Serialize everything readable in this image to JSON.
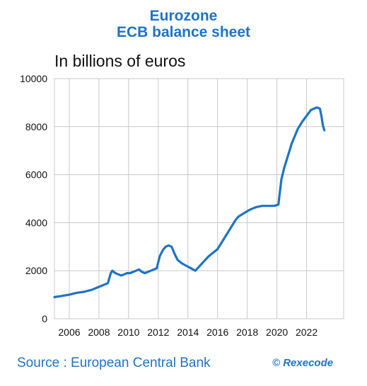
{
  "title_line1": "Eurozone",
  "title_line2": "ECB balance sheet",
  "subtitle": "In billions of euros",
  "source": "Source : European Central Bank",
  "credit": "© Rexecode",
  "colors": {
    "title": "#1f73c4",
    "line": "#1f73c4",
    "grid": "#c8c8c8"
  },
  "chart_data": {
    "type": "line",
    "title": "",
    "xlabel": "",
    "ylabel": "",
    "xlim": [
      2005.0,
      2024.5
    ],
    "ylim": [
      0,
      10000
    ],
    "grid": true,
    "legend": "none",
    "x_ticks": [
      "2006",
      "2008",
      "2010",
      "2012",
      "2014",
      "2016",
      "2018",
      "2020",
      "2022"
    ],
    "y_ticks": [
      "0",
      "2000",
      "4000",
      "6000",
      "8000",
      "10000"
    ],
    "series": [
      {
        "name": "",
        "x": [
          2005.0,
          2005.5,
          2006.0,
          2006.5,
          2007.0,
          2007.5,
          2007.9,
          2008.3,
          2008.6,
          2008.8,
          2008.9,
          2009.1,
          2009.3,
          2009.5,
          2009.7,
          2009.9,
          2010.1,
          2010.3,
          2010.5,
          2010.7,
          2010.9,
          2011.1,
          2011.3,
          2011.5,
          2011.7,
          2011.9,
          2012.1,
          2012.3,
          2012.5,
          2012.7,
          2012.9,
          2013.1,
          2013.3,
          2013.6,
          2013.9,
          2014.2,
          2014.5,
          2014.8,
          2015.1,
          2015.4,
          2015.7,
          2016.0,
          2016.4,
          2016.8,
          2017.2,
          2017.4,
          2017.8,
          2018.2,
          2018.6,
          2019.0,
          2019.4,
          2019.8,
          2020.1,
          2020.3,
          2020.5,
          2020.7,
          2021.0,
          2021.2,
          2021.4,
          2021.7,
          2022.0,
          2022.3,
          2022.5,
          2022.7,
          2022.9,
          2023.0,
          2023.1,
          2023.2
        ],
        "values": [
          900,
          950,
          1000,
          1080,
          1120,
          1200,
          1300,
          1400,
          1480,
          1900,
          2000,
          1900,
          1850,
          1800,
          1850,
          1900,
          1900,
          1950,
          2000,
          2050,
          1950,
          1900,
          1950,
          2000,
          2050,
          2100,
          2600,
          2850,
          3000,
          3050,
          3000,
          2700,
          2450,
          2300,
          2200,
          2100,
          2000,
          2200,
          2400,
          2600,
          2750,
          2900,
          3300,
          3700,
          4100,
          4250,
          4400,
          4550,
          4650,
          4700,
          4700,
          4700,
          4750,
          5800,
          6300,
          6700,
          7300,
          7600,
          7900,
          8200,
          8450,
          8700,
          8750,
          8800,
          8750,
          8450,
          8050,
          7850
        ]
      }
    ]
  }
}
